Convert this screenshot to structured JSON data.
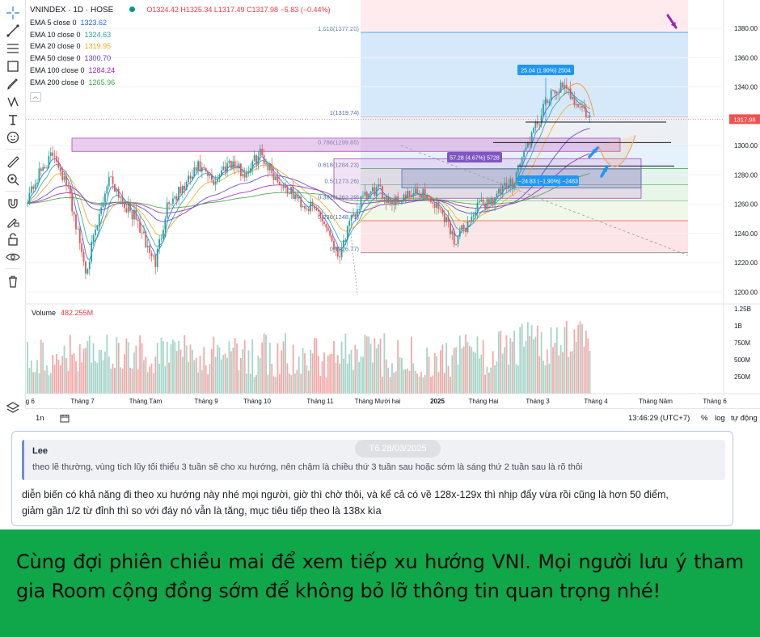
{
  "legend": {
    "symbol": "VNINDEX · 1D · HOSE",
    "ohlc": "O1324.42  H1325.34  L1317.49  C1317.98  −5.83 (−0.44%)",
    "emas": [
      {
        "label": "EMA 5 close 0",
        "value": "1323.62",
        "color": "#2962ff"
      },
      {
        "label": "EMA 10 close 0",
        "value": "1324.63",
        "color": "#26a69a"
      },
      {
        "label": "EMA 20 close 0",
        "value": "1319.95",
        "color": "#f5a623"
      },
      {
        "label": "EMA 50 close 0",
        "value": "1300.70",
        "color": "#5b3fc4"
      },
      {
        "label": "EMA 100 close 0",
        "value": "1284.24",
        "color": "#9c27b0"
      },
      {
        "label": "EMA 200 close 0",
        "value": "1265.96",
        "color": "#43a047"
      }
    ]
  },
  "price_axis": [
    "1380.00",
    "1360.00",
    "1340.00",
    "1300.00",
    "1280.00",
    "1260.00",
    "1240.00",
    "1220.00",
    "1200.00"
  ],
  "last_price": "1317.98",
  "volume_axis": [
    "1.25B",
    "1B",
    "750M",
    "500M",
    "250M"
  ],
  "volume": {
    "label": "Volume",
    "value": "482.255M"
  },
  "time_axis": [
    "ng 6",
    "Tháng 7",
    "Tháng Tám",
    "Tháng 9",
    "Tháng 10",
    "Tháng 11",
    "Tháng Mười hai",
    "2025",
    "Tháng Hai",
    "Tháng 3",
    "Tháng 4",
    "Tháng Năm",
    "Tháng 6"
  ],
  "fib_labels": [
    "1.618(1377.20)",
    "1(1319.74)",
    "0.786(1299.85)",
    "0.618(1284.23)",
    "0.5(1273.26)",
    "0.382(1262.29)",
    "0.236(1248.71)",
    "0(1226.77)"
  ],
  "measure_labels": [
    "25.04 (1.90%) 2504",
    "57.28 (4.67%) 5728",
    "−24.83 (−1.90%) −2483"
  ],
  "bottom_bar": {
    "range": "1n",
    "time": "13:46:29 (UTC+7)",
    "percent": "%",
    "log": "log",
    "auto": "tự động"
  },
  "chat": {
    "date": "T6 28/03/2025",
    "quote_author": "Lee",
    "quote_text": "theo lẽ thường, vùng tích lũy tối thiểu 3 tuần sẽ cho xu hướng, nên chậm là chiều thứ 3 tuần sau hoặc sớm là sáng thứ 2 tuần sau là rõ thôi",
    "message_line1": "diễn biến có khả năng đi theo xu hướng này nhé mọi người, giờ thì chờ thôi, và kể cả có về 128x-129x thì nhịp đẩy vừa rồi cũng là hơn 50 điểm,",
    "message_line2": "giảm gần 1/2 từ đỉnh thì so với đáy nó vẫn là tăng, mục tiêu tiếp theo là 138x kìa"
  },
  "banner_text": "Cùng đợi phiên chiều mai để xem tiếp xu hướng VNI. Mọi người lưu ý tham gia Room cộng đồng sớm để không bỏ lỡ thông tin quan trọng nhé!",
  "colors": {
    "up": "#26a69a",
    "down": "#ef5350",
    "fib_blue": "#bbdefb",
    "fib_red": "#ffcdd2",
    "banner": "#10a64a",
    "highlight": "#e1bee7"
  },
  "icons": [
    "crosshair-icon",
    "trendline-icon",
    "fib-icon",
    "rectangle-icon",
    "brush-icon",
    "pattern-icon",
    "text-icon",
    "emoji-icon",
    "ruler-icon",
    "zoom-icon",
    "magnet-icon",
    "lock-drawing-icon",
    "lock-icon",
    "eye-icon",
    "trash-icon",
    "layers-icon"
  ]
}
